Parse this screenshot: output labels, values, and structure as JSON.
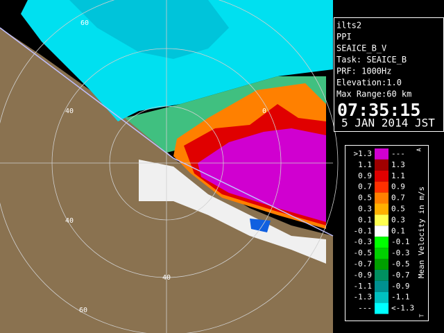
{
  "info": {
    "lines": [
      "ilts2",
      "PPI",
      "SEAICE_B_V",
      "Task: SEAICE_B",
      "PRF: 1000Hz",
      "Elevation:1.0",
      "Max Range:60 km"
    ],
    "time": "07:35:15",
    "date": "5 JAN 2014 JST"
  },
  "map": {
    "ring_labels": [
      "60",
      "40",
      "40",
      "40",
      "60",
      "0"
    ]
  },
  "legend": {
    "title": "Mean Velocity in m/s",
    "top_mark": "A",
    "bottom_mark": "T",
    "rows": [
      {
        "left": ">1.3",
        "right": "---",
        "color": "#d000d0"
      },
      {
        "left": "1.1",
        "right": "1.3",
        "color": "#a00000"
      },
      {
        "left": "0.9",
        "right": "1.1",
        "color": "#e00000"
      },
      {
        "left": "0.7",
        "right": "0.9",
        "color": "#ff3000"
      },
      {
        "left": "0.5",
        "right": "0.7",
        "color": "#ff8000"
      },
      {
        "left": "0.3",
        "right": "0.5",
        "color": "#ffb000"
      },
      {
        "left": "0.1",
        "right": "0.3",
        "color": "#ffff50"
      },
      {
        "left": "-0.1",
        "right": "0.1",
        "color": "#ffffff"
      },
      {
        "left": "-0.3",
        "right": "-0.1",
        "color": "#00ff00"
      },
      {
        "left": "-0.5",
        "right": "-0.3",
        "color": "#00d000"
      },
      {
        "left": "-0.7",
        "right": "-0.5",
        "color": "#00a000"
      },
      {
        "left": "-0.9",
        "right": "-0.7",
        "color": "#009060"
      },
      {
        "left": "-1.1",
        "right": "-0.9",
        "color": "#009090"
      },
      {
        "left": "-1.3",
        "right": "-1.1",
        "color": "#00c0c0"
      },
      {
        "left": "---",
        "right": "<-1.3",
        "color": "#00ffff"
      }
    ]
  }
}
